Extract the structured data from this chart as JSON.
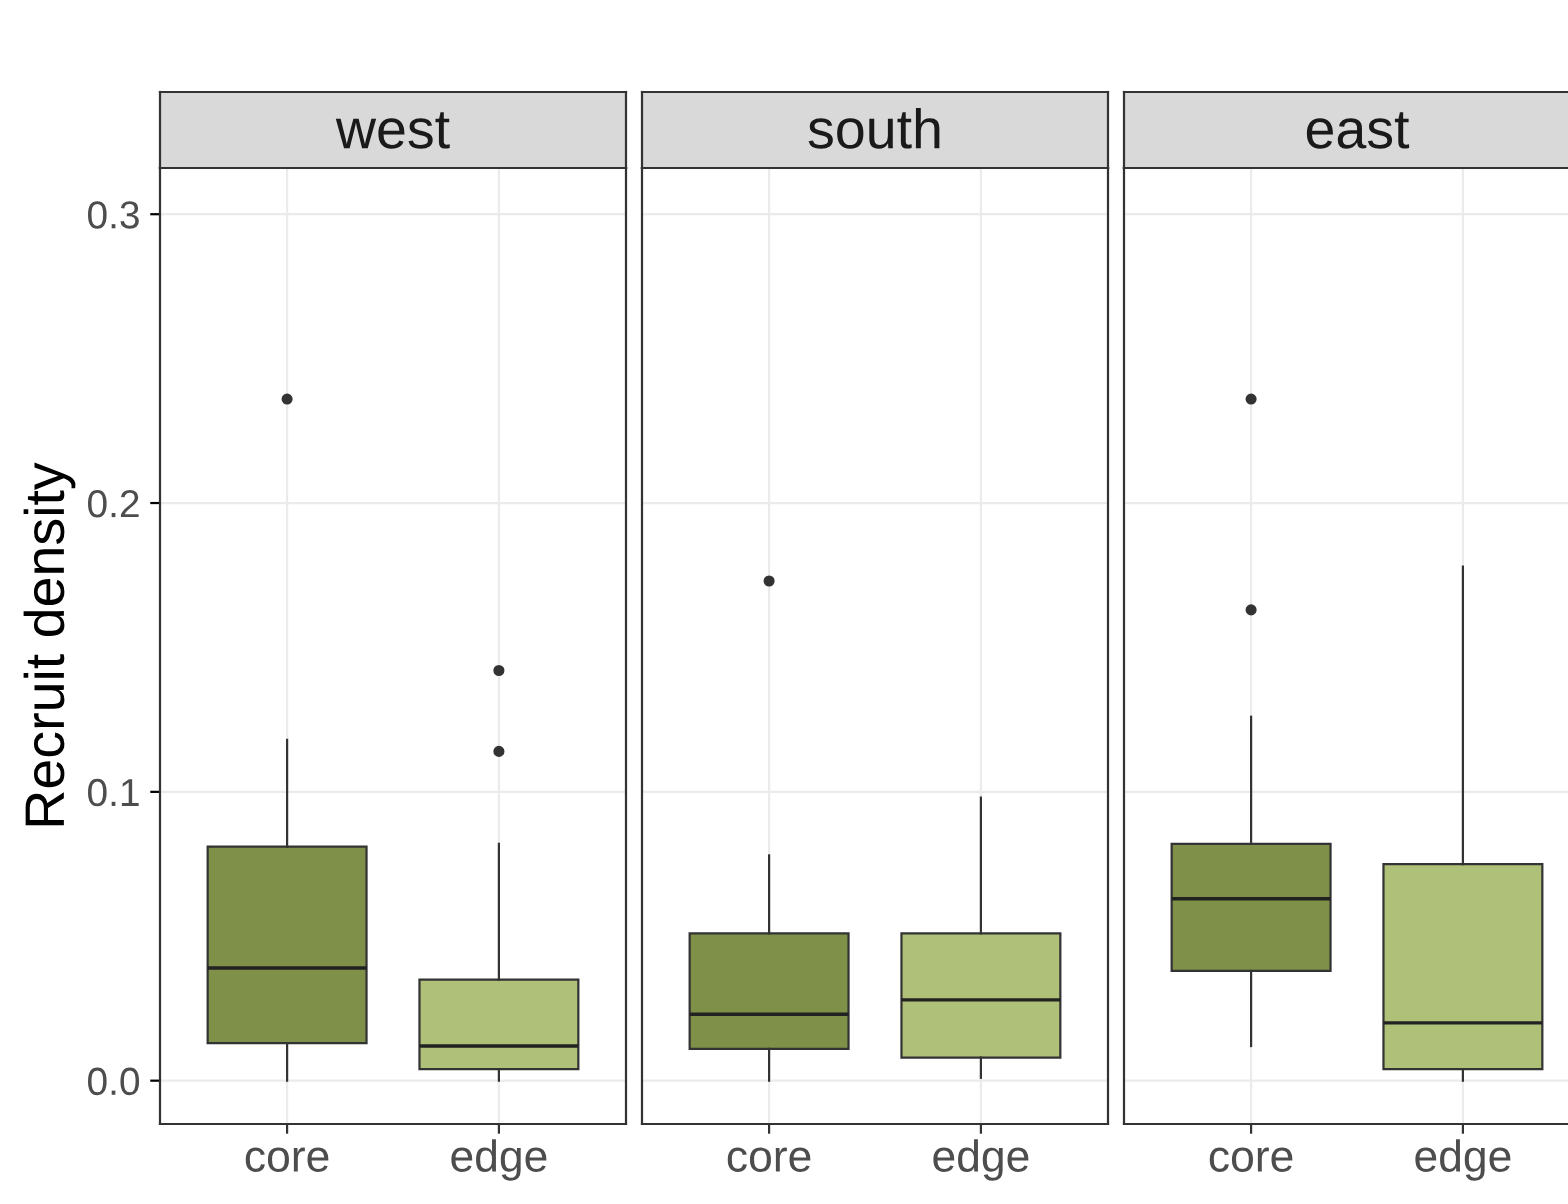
{
  "chart_data": [
    {
      "type": "box",
      "title": "west",
      "ylabel": "Recruit density",
      "categories": [
        "core",
        "edge"
      ],
      "colors": [
        "#7f9148",
        "#afc078"
      ],
      "ylim": [
        -0.015,
        0.316
      ],
      "yticks": [
        {
          "value": 0,
          "label": "0.0"
        },
        0.1,
        0.2,
        0.3
      ],
      "grid": true,
      "boxes": [
        {
          "low": 0,
          "q1": 0.013,
          "median": 0.039,
          "q3": 0.081,
          "high": 0.118,
          "outliers": [
            0.236
          ]
        },
        {
          "low": 0,
          "q1": 0.004,
          "median": 0.012,
          "q3": 0.035,
          "high": 0.082,
          "outliers": [
            0.114,
            0.142
          ]
        }
      ]
    },
    {
      "type": "box",
      "title": "south",
      "categories": [
        "core",
        "edge"
      ],
      "colors": [
        "#7f9148",
        "#afc078"
      ],
      "ylim": [
        -0.015,
        0.316
      ],
      "yticks": [
        0,
        0.1,
        0.2,
        0.3
      ],
      "grid": true,
      "tick_labels": "x",
      "boxes": [
        {
          "low": 0,
          "q1": 0.011,
          "median": 0.023,
          "q3": 0.051,
          "high": 0.078,
          "outliers": [
            0.173
          ]
        },
        {
          "low": 0.001,
          "q1": 0.008,
          "median": 0.028,
          "q3": 0.051,
          "high": 0.098
        }
      ]
    },
    {
      "type": "box",
      "title": "east",
      "categories": [
        "core",
        "edge"
      ],
      "colors": [
        "#7f9148",
        "#afc078"
      ],
      "ylim": [
        -0.015,
        0.316
      ],
      "yticks": [
        0,
        0.1,
        0.2,
        0.3
      ],
      "grid": true,
      "tick_labels": "x",
      "boxes": [
        {
          "low": 0.012,
          "q1": 0.038,
          "median": 0.063,
          "q3": 0.082,
          "high": 0.126,
          "outliers": [
            0.163,
            0.236
          ]
        },
        {
          "low": 0,
          "q1": 0.004,
          "median": 0.02,
          "q3": 0.075,
          "high": 0.178
        }
      ]
    }
  ]
}
